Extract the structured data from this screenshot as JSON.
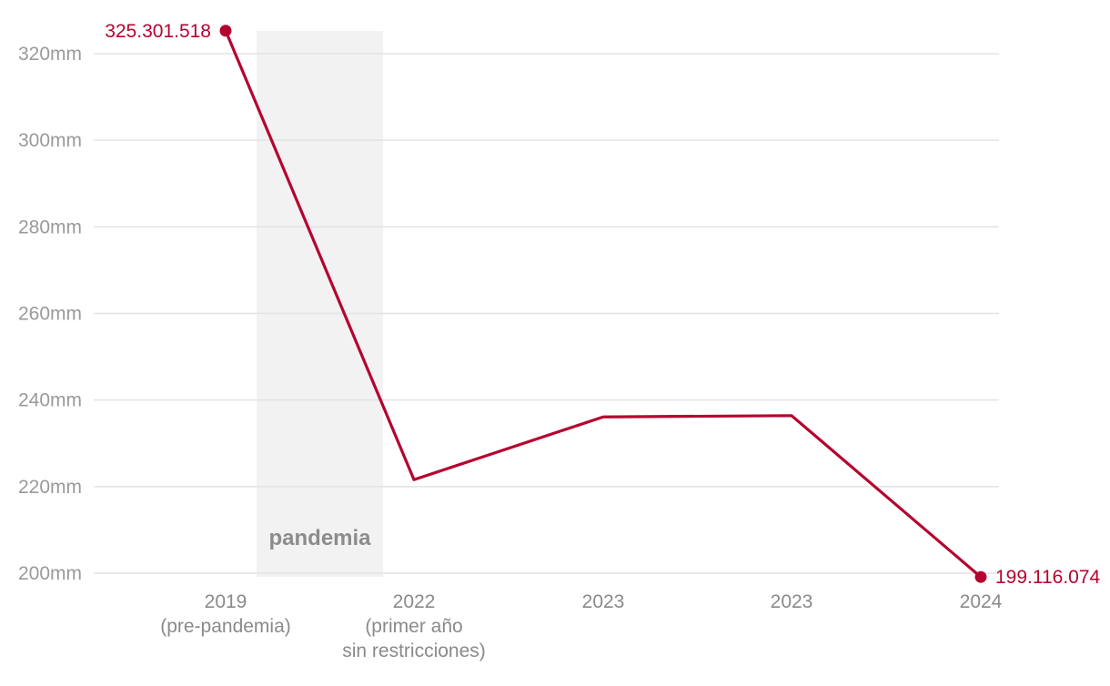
{
  "colors": {
    "line": "#b5032f",
    "grid": "#e3e3e3",
    "band": "#f2f2f2",
    "axis_text": "#9a9a9a"
  },
  "chart_data": {
    "type": "line",
    "categories": [
      [
        "2019",
        "(pre-pandemia)"
      ],
      [
        "2022",
        "(primer año",
        "sin restricciones)"
      ],
      [
        "2023"
      ],
      [
        "2023"
      ],
      [
        "2024"
      ]
    ],
    "series": [
      {
        "values": [
          325301518,
          221600000,
          236100000,
          236400000,
          199116074
        ]
      }
    ],
    "ylim": [
      200000000,
      320000000
    ],
    "yticks": [
      {
        "value": 200000000,
        "label": "200mm"
      },
      {
        "value": 220000000,
        "label": "220mm"
      },
      {
        "value": 240000000,
        "label": "240mm"
      },
      {
        "value": 260000000,
        "label": "260mm"
      },
      {
        "value": 280000000,
        "label": "280mm"
      },
      {
        "value": 300000000,
        "label": "300mm"
      },
      {
        "value": 320000000,
        "label": "320mm"
      }
    ],
    "grid": true,
    "data_labels": [
      {
        "index": 0,
        "text": "325.301.518",
        "side": "left"
      },
      {
        "index": 4,
        "text": "199.116.074",
        "side": "right"
      }
    ],
    "shaded_region": {
      "from_category": 0,
      "to_category": 1,
      "label": "pandemia"
    }
  }
}
